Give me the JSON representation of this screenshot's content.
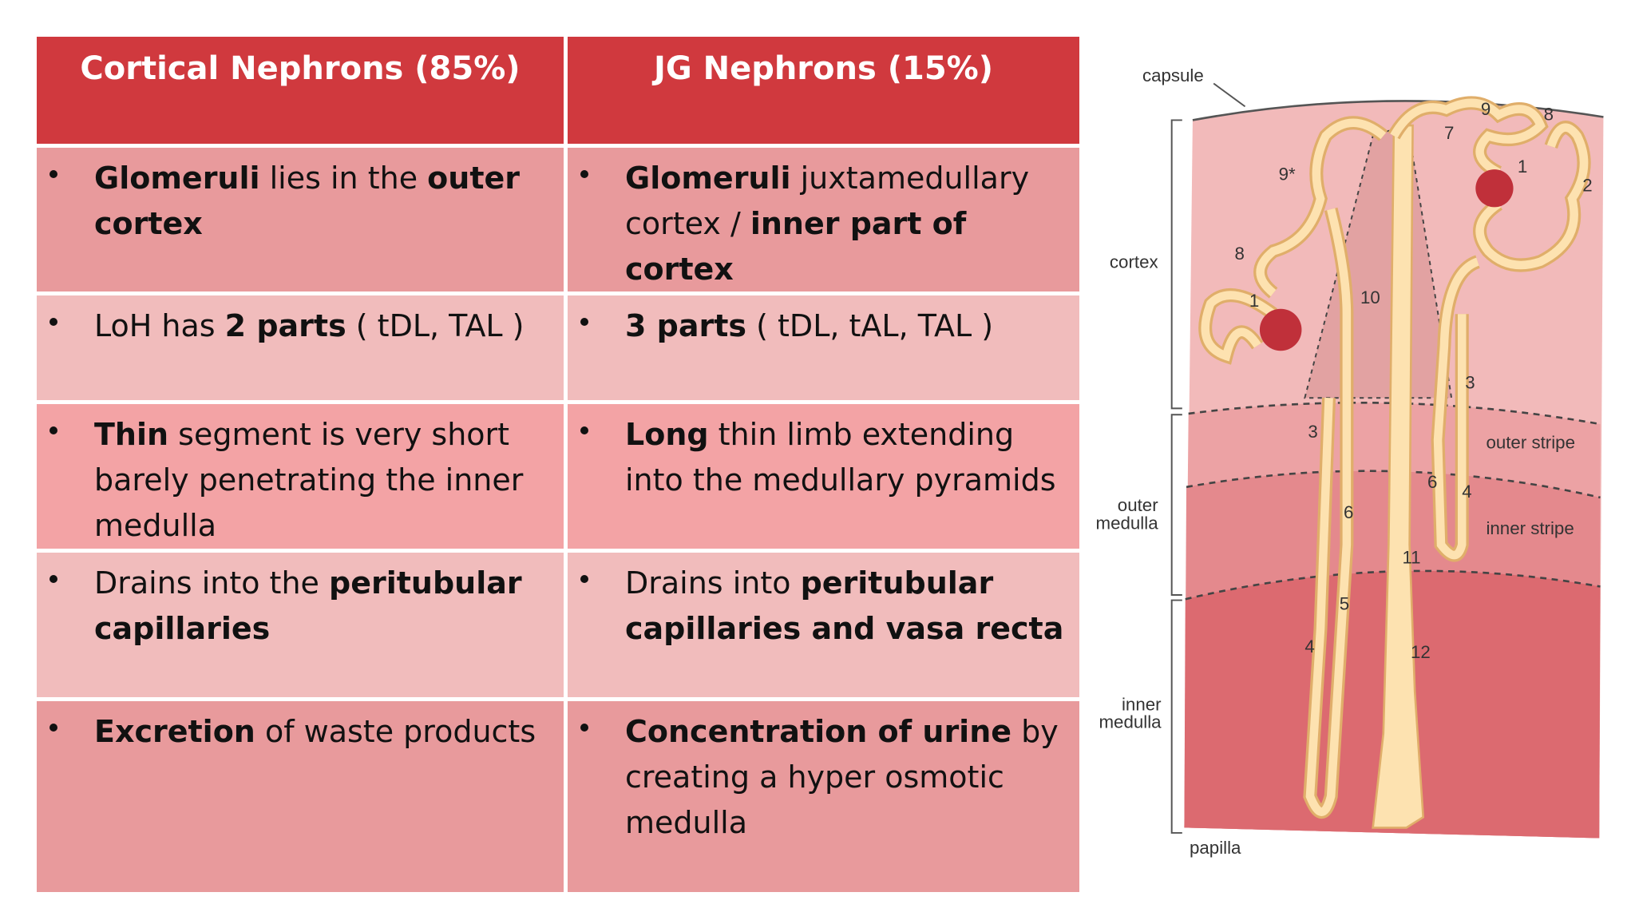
{
  "table": {
    "header": [
      "Cortical Nephrons (85%)",
      "JG  Nephrons (15%)"
    ],
    "rows": [
      [
        [
          {
            "text": "Glomeruli",
            "bold": true
          },
          {
            "text": " lies in the ",
            "bold": false
          },
          {
            "text": "outer cortex",
            "bold": true
          }
        ],
        [
          {
            "text": "Glomeruli",
            "bold": true
          },
          {
            "text": " juxtamedullary cortex / ",
            "bold": false
          },
          {
            "text": "inner part of cortex",
            "bold": true
          }
        ]
      ],
      [
        [
          {
            "text": "LoH has ",
            "bold": false
          },
          {
            "text": "2 parts",
            "bold": true
          },
          {
            "text": " ( tDL, TAL )",
            "bold": false
          }
        ],
        [
          {
            "text": "3 parts",
            "bold": true
          },
          {
            "text": " ( tDL, tAL, TAL )",
            "bold": false
          }
        ]
      ],
      [
        [
          {
            "text": "Thin",
            "bold": true
          },
          {
            "text": " segment is very short barely penetrating the inner medulla",
            "bold": false
          }
        ],
        [
          {
            "text": "Long",
            "bold": true
          },
          {
            "text": " thin limb extending into the medullary pyramids",
            "bold": false
          }
        ]
      ],
      [
        [
          {
            "text": "Drains into the ",
            "bold": false
          },
          {
            "text": "peritubular capillaries",
            "bold": true
          }
        ],
        [
          {
            "text": "Drains into ",
            "bold": false
          },
          {
            "text": "peritubular capillaries and vasa recta",
            "bold": true
          }
        ]
      ],
      [
        [
          {
            "text": "Excretion",
            "bold": true
          },
          {
            "text": " of waste products",
            "bold": false
          }
        ],
        [
          {
            "text": "Concentration of urine",
            "bold": true
          },
          {
            "text": " by creating a hyper osmotic medulla",
            "bold": false
          }
        ]
      ]
    ]
  },
  "diagram": {
    "labels": [
      "capsule",
      "cortex",
      "outer medulla",
      "inner medulla",
      "papilla",
      "outer stripe",
      "inner stripe",
      "9",
      "8",
      "7",
      "1",
      "2",
      "9*",
      "8",
      "1",
      "10",
      "3",
      "3",
      "6",
      "4",
      "6",
      "11",
      "5",
      "4",
      "12"
    ]
  }
}
